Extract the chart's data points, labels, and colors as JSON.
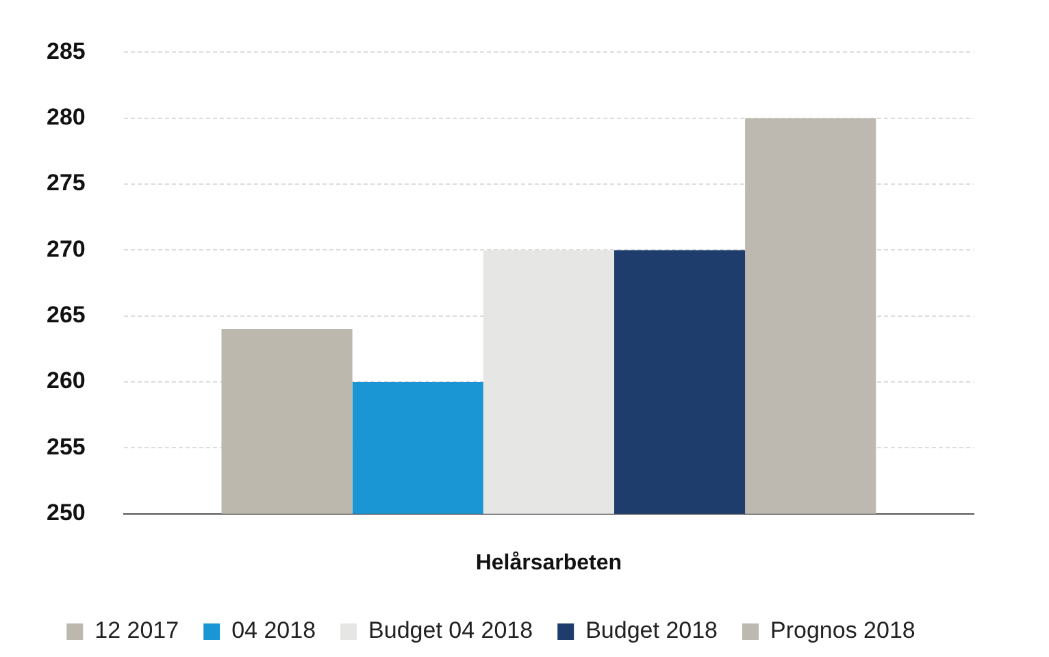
{
  "chart_data": {
    "type": "bar",
    "xlabel": "Helårsarbeten",
    "categories": [
      null
    ],
    "series": [
      {
        "name": "12 2017",
        "color": "#bcb8ae",
        "values": [
          264
        ]
      },
      {
        "name": "04 2018",
        "color": "#1a96d4",
        "values": [
          260
        ]
      },
      {
        "name": "Budget 04 2018",
        "color": "#e6e6e4",
        "values": [
          270
        ]
      },
      {
        "name": "Budget 2018",
        "color": "#1e3c6c",
        "values": [
          270
        ]
      },
      {
        "name": "Prognos 2018",
        "color": "#bdb9b0",
        "values": [
          280
        ]
      }
    ],
    "ylim": [
      250,
      285
    ],
    "yticks": [
      250,
      255,
      260,
      265,
      270,
      275,
      280,
      285
    ],
    "grid": "y",
    "legend": "bottom"
  }
}
